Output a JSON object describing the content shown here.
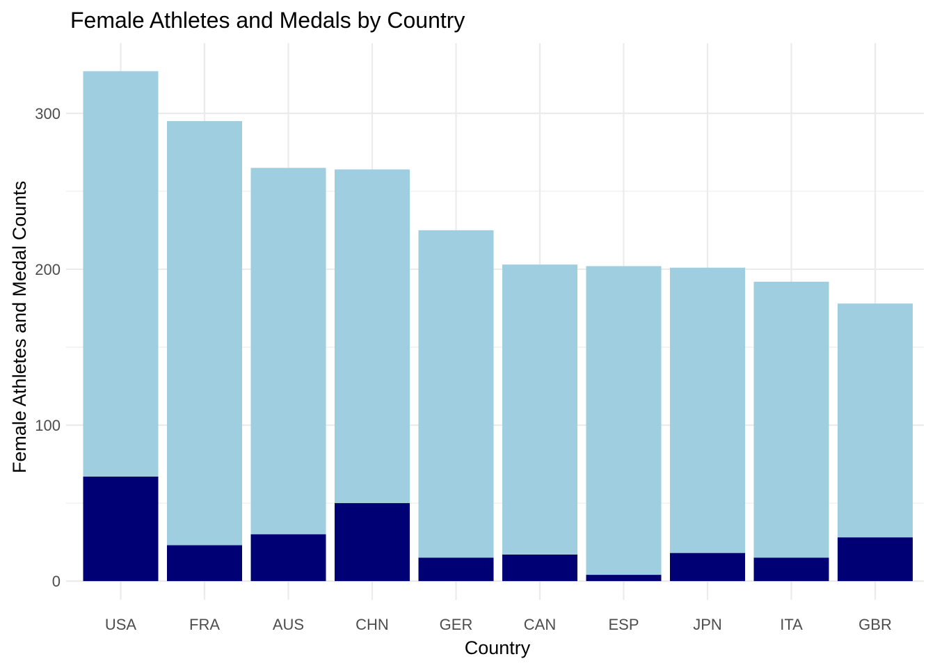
{
  "chart_data": {
    "type": "bar",
    "title": "Female Athletes and Medals by Country",
    "xlabel": "Country",
    "ylabel": "Female Athletes and Medal Counts",
    "categories": [
      "USA",
      "FRA",
      "AUS",
      "CHN",
      "GER",
      "CAN",
      "ESP",
      "JPN",
      "ITA",
      "GBR"
    ],
    "series": [
      {
        "role": "female athletes",
        "color": "#9ECEDF",
        "values": [
          327,
          295,
          265,
          264,
          225,
          203,
          202,
          201,
          192,
          178
        ]
      },
      {
        "role": "medals",
        "color": "#000075",
        "values": [
          67,
          23,
          30,
          50,
          15,
          17,
          4,
          18,
          15,
          28
        ]
      }
    ],
    "ylim": [
      -12,
      345
    ],
    "yticks": [
      0,
      100,
      200,
      300
    ],
    "grid": true,
    "legend": "none"
  }
}
